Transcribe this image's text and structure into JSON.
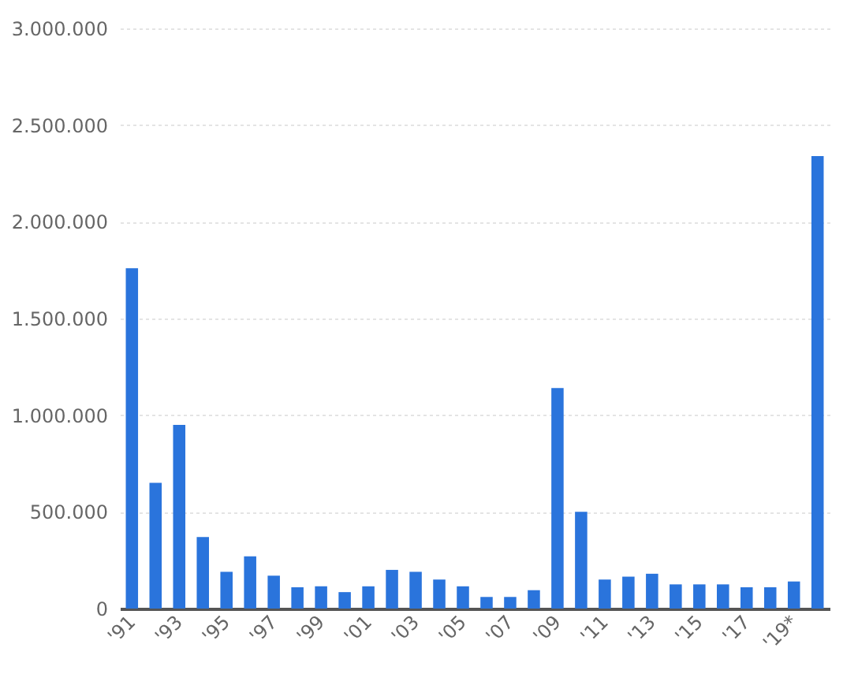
{
  "chart_data": {
    "type": "bar",
    "categories": [
      "'91",
      null,
      "'93",
      null,
      "'95",
      null,
      "'97",
      null,
      "'99",
      null,
      "'01",
      null,
      "'03",
      null,
      "'05",
      null,
      "'07",
      null,
      "'09",
      null,
      "'11",
      null,
      "'13",
      null,
      "'15",
      null,
      "'17",
      null,
      "'19*",
      null
    ],
    "values": [
      1760000,
      650000,
      950000,
      370000,
      190000,
      270000,
      170000,
      110000,
      115000,
      85000,
      115000,
      200000,
      190000,
      150000,
      115000,
      60000,
      60000,
      95000,
      1140000,
      500000,
      150000,
      165000,
      180000,
      125000,
      125000,
      125000,
      110000,
      110000,
      140000,
      2340000
    ],
    "color": "#2a74dc",
    "ylim": [
      0,
      3000000
    ],
    "yticks": [
      0,
      {
        "value": 500000,
        "label": "500.000"
      },
      {
        "value": 1000000,
        "label": "1.000.000"
      },
      {
        "value": 1500000,
        "label": "1.500.000"
      },
      {
        "value": 2000000,
        "label": "2.000.000"
      },
      {
        "value": 2500000,
        "label": "2.500.000"
      },
      {
        "value": 3000000,
        "label": "3.000.000"
      }
    ],
    "grid": "y"
  }
}
